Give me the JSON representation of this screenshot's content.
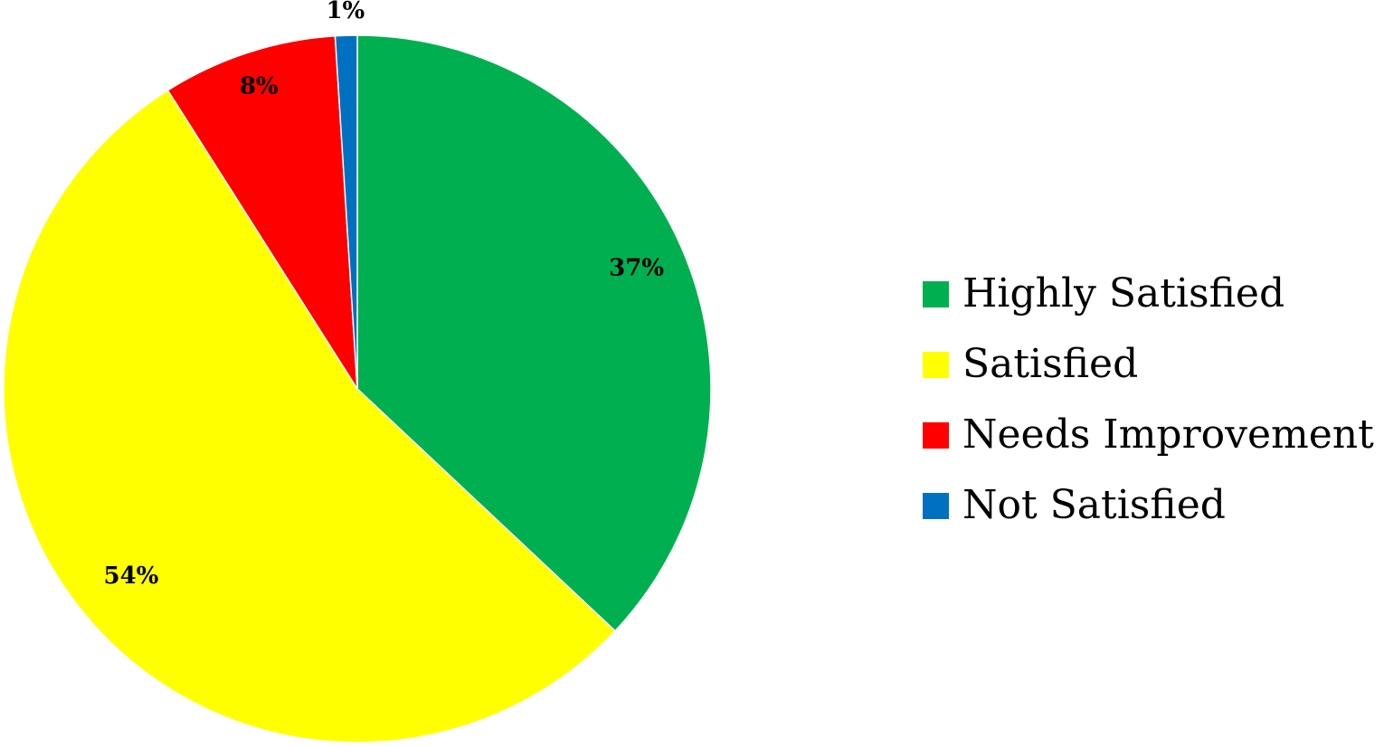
{
  "chart_data": {
    "type": "pie",
    "title": "",
    "series": [
      {
        "labels": [
          "Highly Satisfied",
          "Satisfied",
          "Needs Improvement",
          "Not Satisfied"
        ],
        "values": [
          37,
          54,
          8,
          1
        ],
        "data_labels": [
          "37%",
          "54%",
          "8%",
          "1%"
        ],
        "colors": [
          "#00b050",
          "#ffff00",
          "#ff0000",
          "#0070c0"
        ]
      }
    ],
    "start_angle": "12 o'clock",
    "direction": "clockwise",
    "legend_placement": "right"
  },
  "legend": {
    "items": [
      {
        "label": "Highly Satisfied",
        "color": "#00b050"
      },
      {
        "label": "Satisfied",
        "color": "#ffff00"
      },
      {
        "label": "Needs Improvement",
        "color": "#ff0000"
      },
      {
        "label": "Not Satisfied",
        "color": "#0070c0"
      }
    ]
  }
}
